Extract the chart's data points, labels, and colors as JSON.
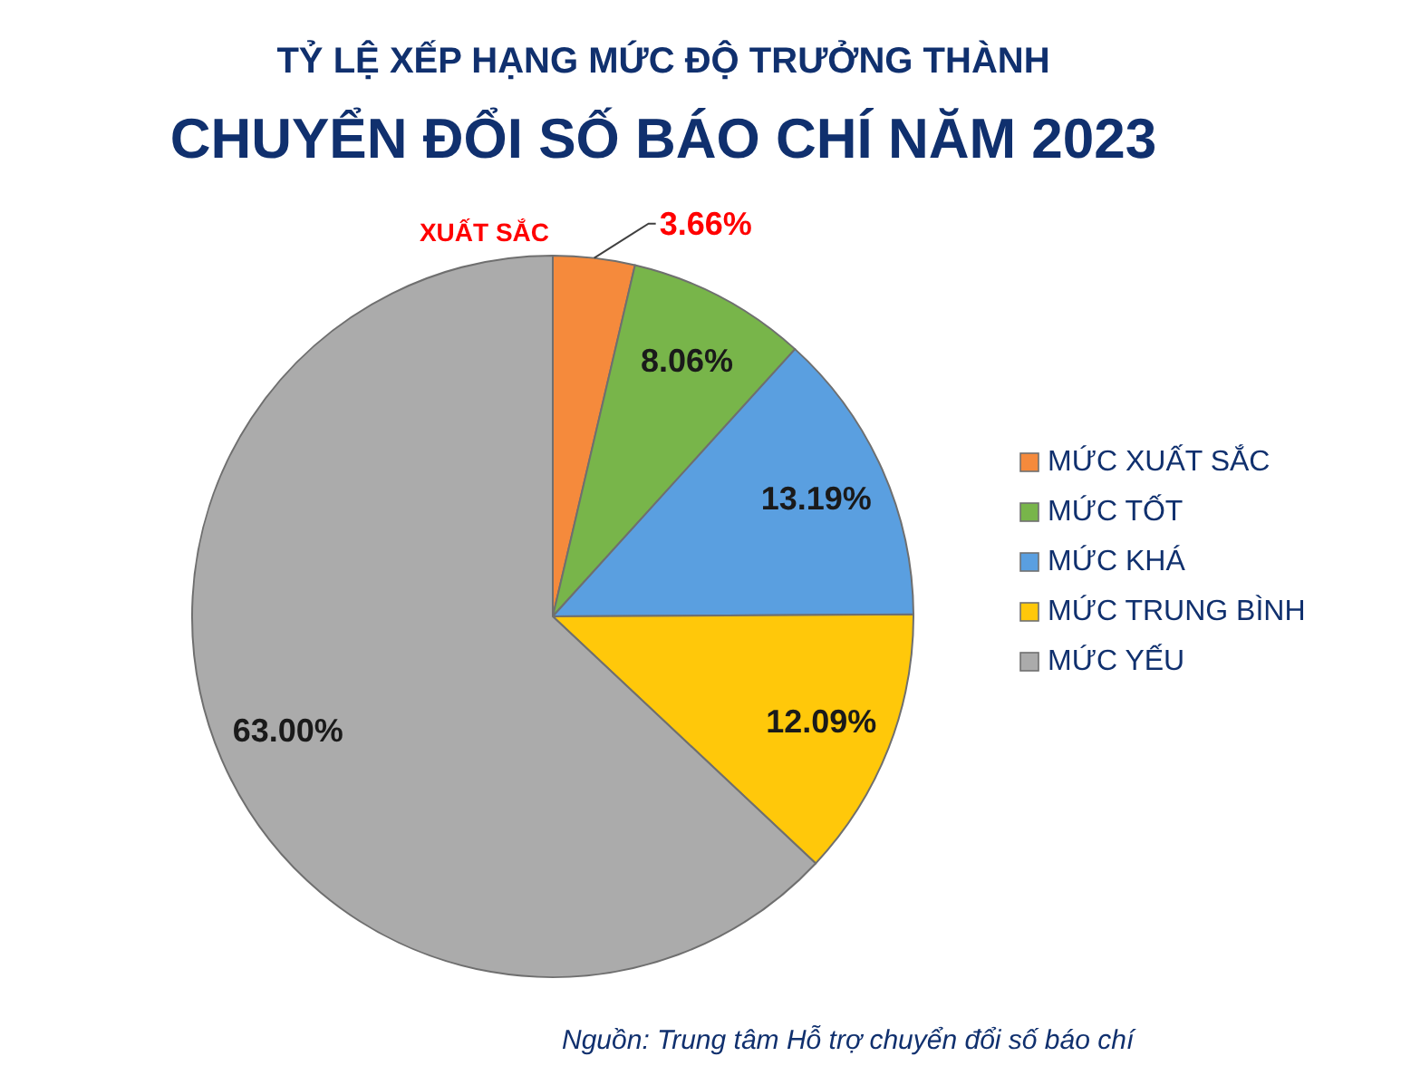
{
  "chart_data": {
    "type": "pie",
    "title": "TỶ LỆ XẾP HẠNG MỨC ĐỘ TRƯỞNG THÀNH",
    "subtitle": "CHUYỂN ĐỔI SỐ BÁO CHÍ NĂM 2023",
    "categories": [
      "MỨC XUẤT SẮC",
      "MỨC TỐT",
      "MỨC KHÁ",
      "MỨC TRUNG BÌNH",
      "MỨC YẾU"
    ],
    "values": [
      3.66,
      8.06,
      13.19,
      12.09,
      63.0
    ],
    "colors": [
      "#f58a3c",
      "#78b54a",
      "#5a9fe0",
      "#ffc80a",
      "#ababab"
    ],
    "value_labels": [
      "3.66%",
      "8.06%",
      "13.19%",
      "12.09%",
      "63.00%"
    ],
    "legend": "right",
    "annotations": [
      "XUẤT SẮC",
      "Nguồn: Trung tâm Hỗ trợ chuyển đổi số báo chí"
    ]
  }
}
